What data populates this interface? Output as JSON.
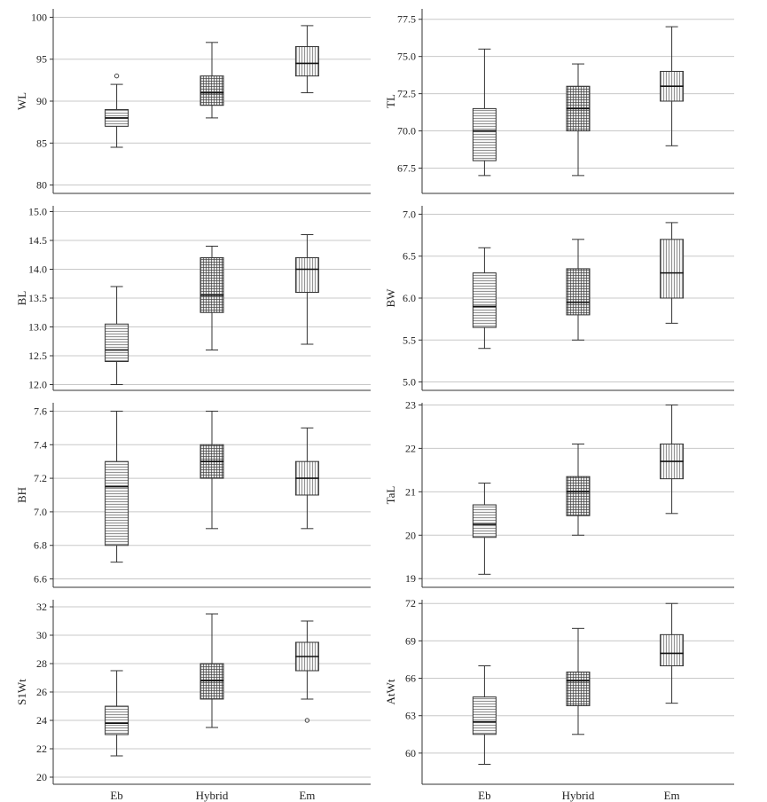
{
  "categories": [
    "Eb",
    "Hybrid",
    "Em"
  ],
  "chart_data": [
    {
      "type": "box",
      "ylabel": "WL",
      "ylim": [
        79,
        101
      ],
      "yticks": [
        80,
        85,
        90,
        95,
        100
      ],
      "tick_labels": [
        "80",
        "85",
        "90",
        "95",
        "100"
      ],
      "boxes": [
        {
          "category": "Eb",
          "min": 84.5,
          "q1": 87.0,
          "median": 88.0,
          "q3": 89.0,
          "max": 92.0,
          "outliers": [
            93.0
          ],
          "pattern": "horizontal"
        },
        {
          "category": "Hybrid",
          "min": 88.0,
          "q1": 89.5,
          "median": 91.0,
          "q3": 93.0,
          "max": 97.0,
          "outliers": [],
          "pattern": "grid"
        },
        {
          "category": "Em",
          "min": 91.0,
          "q1": 93.0,
          "median": 94.5,
          "q3": 96.5,
          "max": 99.0,
          "outliers": [],
          "pattern": "vertical"
        }
      ]
    },
    {
      "type": "box",
      "ylabel": "TL",
      "ylim": [
        65.8,
        78.2
      ],
      "yticks": [
        67.5,
        70.0,
        72.5,
        75.0,
        77.5
      ],
      "tick_labels": [
        "67.5",
        "70.0",
        "72.5",
        "75.0",
        "77.5"
      ],
      "boxes": [
        {
          "category": "Eb",
          "min": 67.0,
          "q1": 68.0,
          "median": 70.0,
          "q3": 71.5,
          "max": 75.5,
          "outliers": [],
          "pattern": "horizontal"
        },
        {
          "category": "Hybrid",
          "min": 67.0,
          "q1": 70.0,
          "median": 71.5,
          "q3": 73.0,
          "max": 74.5,
          "outliers": [],
          "pattern": "grid"
        },
        {
          "category": "Em",
          "min": 69.0,
          "q1": 72.0,
          "median": 73.0,
          "q3": 74.0,
          "max": 77.0,
          "outliers": [],
          "pattern": "vertical"
        }
      ]
    },
    {
      "type": "box",
      "ylabel": "BL",
      "ylim": [
        11.9,
        15.1
      ],
      "yticks": [
        12.0,
        12.5,
        13.0,
        13.5,
        14.0,
        14.5,
        15.0
      ],
      "tick_labels": [
        "12.0",
        "12.5",
        "13.0",
        "13.5",
        "14.0",
        "14.5",
        "15.0"
      ],
      "boxes": [
        {
          "category": "Eb",
          "min": 12.0,
          "q1": 12.4,
          "median": 12.6,
          "q3": 13.05,
          "max": 13.7,
          "outliers": [],
          "pattern": "horizontal"
        },
        {
          "category": "Hybrid",
          "min": 12.6,
          "q1": 13.25,
          "median": 13.55,
          "q3": 14.2,
          "max": 14.4,
          "outliers": [],
          "pattern": "grid"
        },
        {
          "category": "Em",
          "min": 12.7,
          "q1": 13.6,
          "median": 14.0,
          "q3": 14.2,
          "max": 14.6,
          "outliers": [],
          "pattern": "vertical"
        }
      ]
    },
    {
      "type": "box",
      "ylabel": "BW",
      "ylim": [
        4.9,
        7.1
      ],
      "yticks": [
        5.0,
        5.5,
        6.0,
        6.5,
        7.0
      ],
      "tick_labels": [
        "5.0",
        "5.5",
        "6.0",
        "6.5",
        "7.0"
      ],
      "boxes": [
        {
          "category": "Eb",
          "min": 5.4,
          "q1": 5.65,
          "median": 5.9,
          "q3": 6.3,
          "max": 6.6,
          "outliers": [],
          "pattern": "horizontal"
        },
        {
          "category": "Hybrid",
          "min": 5.5,
          "q1": 5.8,
          "median": 5.95,
          "q3": 6.35,
          "max": 6.7,
          "outliers": [],
          "pattern": "grid"
        },
        {
          "category": "Em",
          "min": 5.7,
          "q1": 6.0,
          "median": 6.3,
          "q3": 6.7,
          "max": 6.9,
          "outliers": [],
          "pattern": "vertical"
        }
      ]
    },
    {
      "type": "box",
      "ylabel": "BH",
      "ylim": [
        6.55,
        7.65
      ],
      "yticks": [
        6.6,
        6.8,
        7.0,
        7.2,
        7.4,
        7.6
      ],
      "tick_labels": [
        "6.6",
        "6.8",
        "7.0",
        "7.2",
        "7.4",
        "7.6"
      ],
      "boxes": [
        {
          "category": "Eb",
          "min": 6.7,
          "q1": 6.8,
          "median": 7.15,
          "q3": 7.3,
          "max": 7.6,
          "outliers": [],
          "pattern": "horizontal"
        },
        {
          "category": "Hybrid",
          "min": 6.9,
          "q1": 7.2,
          "median": 7.3,
          "q3": 7.4,
          "max": 7.6,
          "outliers": [],
          "pattern": "grid"
        },
        {
          "category": "Em",
          "min": 6.9,
          "q1": 7.1,
          "median": 7.2,
          "q3": 7.3,
          "max": 7.5,
          "outliers": [],
          "pattern": "vertical"
        }
      ]
    },
    {
      "type": "box",
      "ylabel": "TaL",
      "ylim": [
        18.8,
        23.05
      ],
      "yticks": [
        19,
        20,
        21,
        22,
        23
      ],
      "tick_labels": [
        "19",
        "20",
        "21",
        "22",
        "23"
      ],
      "boxes": [
        {
          "category": "Eb",
          "min": 19.1,
          "q1": 19.95,
          "median": 20.25,
          "q3": 20.7,
          "max": 21.2,
          "outliers": [],
          "pattern": "horizontal"
        },
        {
          "category": "Hybrid",
          "min": 20.0,
          "q1": 20.45,
          "median": 21.0,
          "q3": 21.35,
          "max": 22.1,
          "outliers": [],
          "pattern": "grid"
        },
        {
          "category": "Em",
          "min": 20.5,
          "q1": 21.3,
          "median": 21.7,
          "q3": 22.1,
          "max": 23.0,
          "outliers": [],
          "pattern": "vertical"
        }
      ]
    },
    {
      "type": "box",
      "ylabel": "S1Wt",
      "ylim": [
        19.5,
        32.5
      ],
      "yticks": [
        20,
        22,
        24,
        26,
        28,
        30,
        32
      ],
      "tick_labels": [
        "20",
        "22",
        "24",
        "26",
        "28",
        "30",
        "32"
      ],
      "boxes": [
        {
          "category": "Eb",
          "min": 21.5,
          "q1": 23.0,
          "median": 23.8,
          "q3": 25.0,
          "max": 27.5,
          "outliers": [],
          "pattern": "horizontal"
        },
        {
          "category": "Hybrid",
          "min": 23.5,
          "q1": 25.5,
          "median": 26.8,
          "q3": 28.0,
          "max": 31.5,
          "outliers": [],
          "pattern": "grid"
        },
        {
          "category": "Em",
          "min": 25.5,
          "q1": 27.5,
          "median": 28.5,
          "q3": 29.5,
          "max": 31.0,
          "outliers": [
            24.0
          ],
          "pattern": "vertical"
        }
      ]
    },
    {
      "type": "box",
      "ylabel": "AtWt",
      "ylim": [
        57.5,
        72.3
      ],
      "yticks": [
        60,
        63,
        66,
        69,
        72
      ],
      "tick_labels": [
        "60",
        "63",
        "66",
        "69",
        "72"
      ],
      "boxes": [
        {
          "category": "Eb",
          "min": 59.1,
          "q1": 61.5,
          "median": 62.5,
          "q3": 64.5,
          "max": 67.0,
          "outliers": [],
          "pattern": "horizontal"
        },
        {
          "category": "Hybrid",
          "min": 61.5,
          "q1": 63.8,
          "median": 65.8,
          "q3": 66.5,
          "max": 70.0,
          "outliers": [],
          "pattern": "grid"
        },
        {
          "category": "Em",
          "min": 64.0,
          "q1": 67.0,
          "median": 68.0,
          "q3": 69.5,
          "max": 72.0,
          "outliers": [],
          "pattern": "vertical"
        }
      ]
    }
  ]
}
